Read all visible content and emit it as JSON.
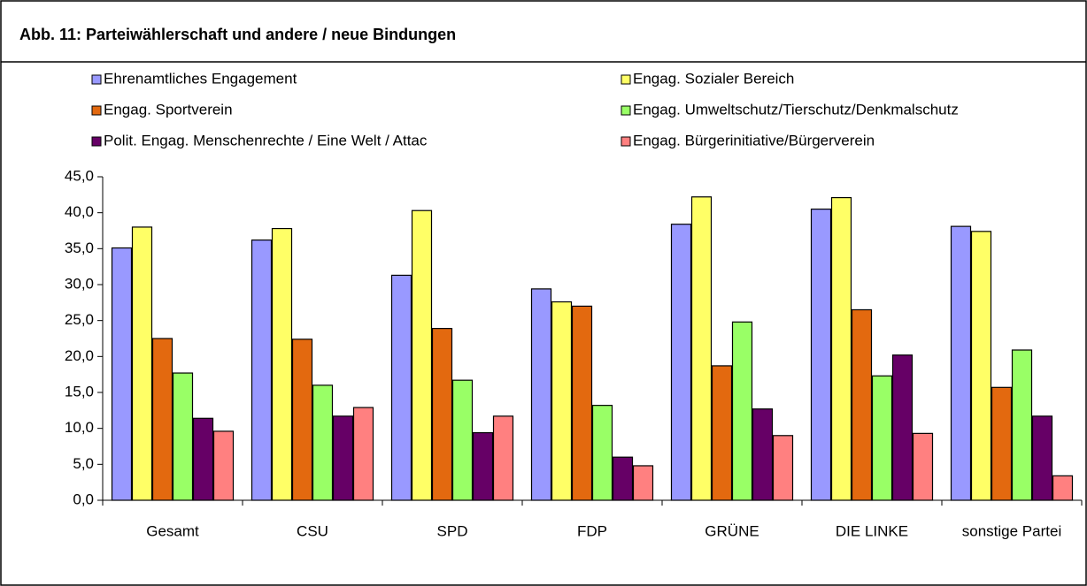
{
  "chart_data": {
    "type": "bar",
    "title": "Abb. 11: Parteiwählerschaft und andere / neue Bindungen",
    "categories": [
      "Gesamt",
      "CSU",
      "SPD",
      "FDP",
      "GRÜNE",
      "DIE LINKE",
      "sonstige Partei"
    ],
    "series": [
      {
        "name": "Ehrenamtliches Engagement",
        "color": "#9999ff",
        "values": [
          35.1,
          36.2,
          31.3,
          29.4,
          38.4,
          40.5,
          38.1
        ]
      },
      {
        "name": "Engag. Sozialer Bereich",
        "color": "#ffff66",
        "values": [
          38.0,
          37.8,
          40.3,
          27.6,
          42.2,
          42.1,
          37.4
        ]
      },
      {
        "name": "Engag. Sportverein",
        "color": "#e3690f",
        "values": [
          22.5,
          22.4,
          23.9,
          27.0,
          18.7,
          26.5,
          15.7
        ]
      },
      {
        "name": "Engag. Umweltschutz/Tierschutz/Denkmalschutz",
        "color": "#99ff66",
        "values": [
          17.7,
          16.0,
          16.7,
          13.2,
          24.8,
          17.3,
          20.9
        ]
      },
      {
        "name": "Polit. Engag. Menschenrechte / Eine Welt / Attac",
        "color": "#660066",
        "values": [
          11.4,
          11.7,
          9.4,
          6.0,
          12.7,
          20.2,
          11.7
        ]
      },
      {
        "name": "Engag. Bürgerinitiative/Bürgerverein",
        "color": "#ff8080",
        "values": [
          9.6,
          12.9,
          11.7,
          4.8,
          9.0,
          9.3,
          3.4
        ]
      }
    ],
    "ylim": [
      0,
      45
    ],
    "yticks": [
      {
        "value": 0,
        "label": "0,0"
      },
      {
        "value": 5,
        "label": "5,0"
      },
      {
        "value": 10,
        "label": "10,0"
      },
      {
        "value": 15,
        "label": "15,0"
      },
      {
        "value": 20,
        "label": "20,0"
      },
      {
        "value": 25,
        "label": "25,0"
      },
      {
        "value": 30,
        "label": "30,0"
      },
      {
        "value": 35,
        "label": "35,0"
      },
      {
        "value": 40,
        "label": "40,0"
      },
      {
        "value": 45,
        "label": "45,0"
      }
    ],
    "grid": false
  }
}
